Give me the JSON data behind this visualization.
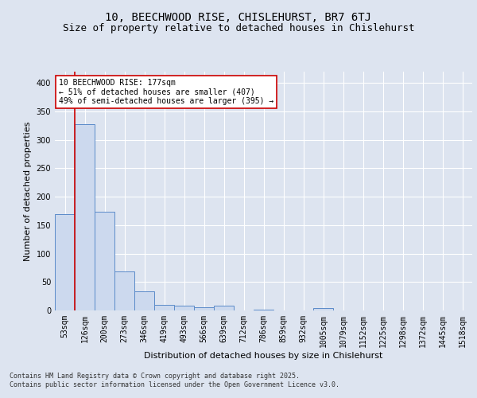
{
  "title_line1": "10, BEECHWOOD RISE, CHISLEHURST, BR7 6TJ",
  "title_line2": "Size of property relative to detached houses in Chislehurst",
  "xlabel": "Distribution of detached houses by size in Chislehurst",
  "ylabel": "Number of detached properties",
  "categories": [
    "53sqm",
    "126sqm",
    "200sqm",
    "273sqm",
    "346sqm",
    "419sqm",
    "493sqm",
    "566sqm",
    "639sqm",
    "712sqm",
    "786sqm",
    "859sqm",
    "932sqm",
    "1005sqm",
    "1079sqm",
    "1152sqm",
    "1225sqm",
    "1298sqm",
    "1372sqm",
    "1445sqm",
    "1518sqm"
  ],
  "values": [
    170,
    328,
    174,
    69,
    33,
    10,
    8,
    5,
    9,
    0,
    2,
    0,
    0,
    4,
    0,
    0,
    0,
    0,
    0,
    0,
    0
  ],
  "bar_color": "#ccd9ee",
  "bar_edge_color": "#5b8bc9",
  "vline_x": 0.5,
  "vline_color": "#cc0000",
  "annotation_text": "10 BEECHWOOD RISE: 177sqm\n← 51% of detached houses are smaller (407)\n49% of semi-detached houses are larger (395) →",
  "annotation_box_color": "#ffffff",
  "annotation_box_edge_color": "#cc0000",
  "ylim": [
    0,
    420
  ],
  "yticks": [
    0,
    50,
    100,
    150,
    200,
    250,
    300,
    350,
    400
  ],
  "background_color": "#dde4f0",
  "plot_background_color": "#dde4f0",
  "grid_color": "#ffffff",
  "footer_text": "Contains HM Land Registry data © Crown copyright and database right 2025.\nContains public sector information licensed under the Open Government Licence v3.0.",
  "title_fontsize": 10,
  "subtitle_fontsize": 9,
  "xlabel_fontsize": 8,
  "ylabel_fontsize": 8,
  "tick_fontsize": 7,
  "annotation_fontsize": 7,
  "footer_fontsize": 6
}
